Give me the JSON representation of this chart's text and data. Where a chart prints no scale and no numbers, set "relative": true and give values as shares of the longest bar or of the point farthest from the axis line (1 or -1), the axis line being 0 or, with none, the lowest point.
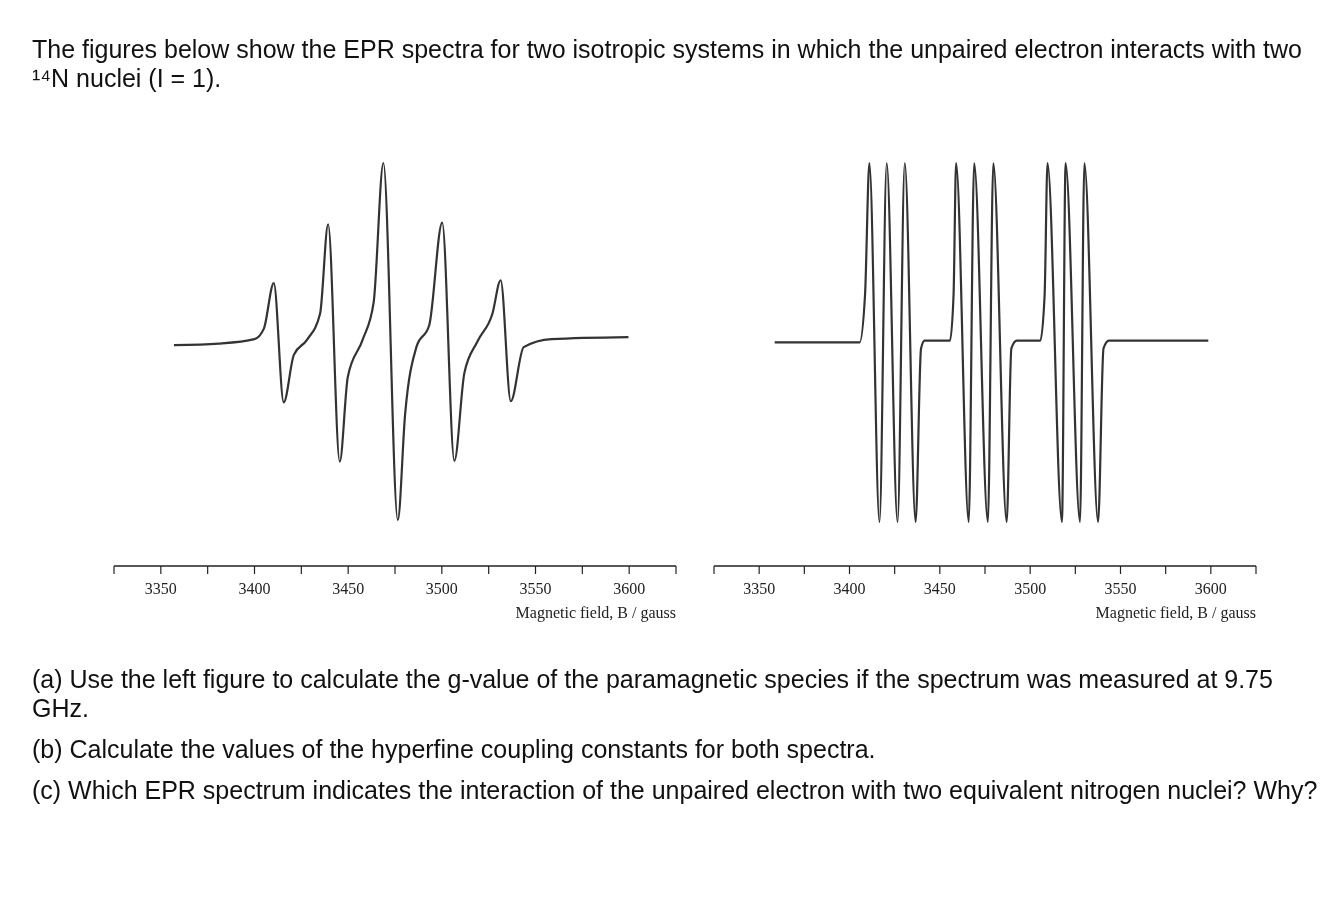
{
  "chart_data": [
    {
      "type": "other",
      "annotations": [
        "The figures below show the EPR spectra for two isotropic systems in which the unpaired electron interacts with two ¹⁴N nuclei (I = 1)."
      ]
    },
    {
      "type": "line",
      "relative": true,
      "xlabel": "Magnetic field, B / gauss",
      "xlim": [
        3325,
        3625
      ],
      "xticks": [
        {
          "value": 3325,
          "label": null
        },
        3350,
        {
          "value": 3375,
          "label": null
        },
        3400,
        {
          "value": 3425,
          "label": null
        },
        3450,
        {
          "value": 3475,
          "label": null
        },
        3500,
        {
          "value": 3525,
          "label": null
        },
        3550,
        {
          "value": 3575,
          "label": null
        },
        3600,
        {
          "value": 3625,
          "label": null
        }
      ],
      "marker": "none",
      "line_style": "solid",
      "series": [
        {
          "color": "#333333",
          "x": [
            3357,
            3381,
            3400,
            3405,
            3410.3,
            3415.6,
            3421,
            3428,
            3435,
            3439.3,
            3445.5,
            3449.8,
            3457.7,
            3463.6,
            3468.8,
            3476.5,
            3480.4,
            3486.4,
            3493.3,
            3500.2,
            3506.7,
            3512,
            3519,
            3527,
            3531.4,
            3536.8,
            3543.7,
            3558.5,
            3599.6
          ],
          "values": [
            0.548,
            0.552,
            0.563,
            0.589,
            0.702,
            0.406,
            0.524,
            0.561,
            0.626,
            0.848,
            0.259,
            0.469,
            0.561,
            0.654,
            1,
            0.114,
            0.377,
            0.543,
            0.598,
            0.852,
            0.261,
            0.478,
            0.557,
            0.626,
            0.709,
            0.409,
            0.543,
            0.563,
            0.568
          ]
        }
      ]
    },
    {
      "type": "line",
      "relative": true,
      "xlabel": "Magnetic field, B / gauss",
      "xlim": [
        3325,
        3625
      ],
      "xticks": [
        {
          "value": 3325,
          "label": null
        },
        3350,
        {
          "value": 3375,
          "label": null
        },
        3400,
        {
          "value": 3425,
          "label": null
        },
        3450,
        {
          "value": 3475,
          "label": null
        },
        3500,
        {
          "value": 3525,
          "label": null
        },
        3550,
        {
          "value": 3575,
          "label": null
        },
        3600,
        {
          "value": 3625,
          "label": null
        }
      ],
      "marker": "none",
      "line_style": "solid",
      "series": [
        {
          "color": "#333333",
          "x": [
            3358.6,
            3405.6,
            3408.6,
            3411,
            3416.6,
            3420.6,
            3426.6,
            3430.6,
            3436.6,
            3439.6,
            3441.6,
            3455.6,
            3457.6,
            3459,
            3466,
            3469,
            3476.6,
            3479.6,
            3487,
            3489.6,
            3492.6,
            3505.6,
            3508,
            3509.6,
            3517.6,
            3519.6,
            3527.6,
            3530,
            3537.6,
            3540.6,
            3543.6,
            3598.6
          ],
          "values": [
            0.555,
            0.555,
            0.673,
            1,
            0.109,
            1,
            0.109,
            1,
            0.109,
            0.54,
            0.559,
            0.559,
            0.673,
            1,
            0.109,
            1,
            0.109,
            1,
            0.109,
            0.54,
            0.559,
            0.559,
            0.673,
            1,
            0.109,
            1,
            0.109,
            1,
            0.109,
            0.54,
            0.559,
            0.559
          ]
        }
      ]
    },
    {
      "type": "other",
      "annotations": [
        "(a) Use the left figure to calculate the g-value of the paramagnetic species if the spectrum was measured at 9.75 GHz.",
        "(b) Calculate the values of the hyperfine coupling constants for both spectra.",
        "(c) Which EPR spectrum indicates the interaction of the unpaired electron with two equivalent nitrogen nuclei? Why?"
      ]
    }
  ]
}
